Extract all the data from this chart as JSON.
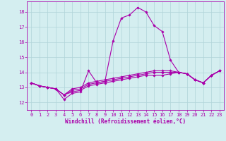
{
  "xlabel": "Windchill (Refroidissement éolien,°C)",
  "background_color": "#d4eef0",
  "grid_color": "#b0d4d8",
  "line_color": "#aa00aa",
  "x_ticks": [
    0,
    1,
    2,
    3,
    4,
    5,
    6,
    7,
    8,
    9,
    10,
    11,
    12,
    13,
    14,
    15,
    16,
    17,
    18,
    19,
    20,
    21,
    22,
    23
  ],
  "y_ticks": [
    12,
    13,
    14,
    15,
    16,
    17,
    18
  ],
  "ylim": [
    11.5,
    18.7
  ],
  "xlim": [
    -0.5,
    23.5
  ],
  "series": [
    [
      13.3,
      13.1,
      13.0,
      12.9,
      12.2,
      12.6,
      12.7,
      14.1,
      13.3,
      13.4,
      16.1,
      17.6,
      17.8,
      18.3,
      18.0,
      17.1,
      16.7,
      14.8,
      14.0,
      13.9,
      13.5,
      13.3,
      13.8,
      14.1
    ],
    [
      13.3,
      13.1,
      13.0,
      12.9,
      12.5,
      12.7,
      12.8,
      13.1,
      13.2,
      13.3,
      13.4,
      13.5,
      13.6,
      13.7,
      13.8,
      13.8,
      13.8,
      13.9,
      14.0,
      13.9,
      13.5,
      13.3,
      13.8,
      14.1
    ],
    [
      13.3,
      13.1,
      13.0,
      12.9,
      12.5,
      12.8,
      12.9,
      13.2,
      13.3,
      13.4,
      13.5,
      13.6,
      13.7,
      13.8,
      13.9,
      14.0,
      14.0,
      14.0,
      14.0,
      13.9,
      13.5,
      13.3,
      13.8,
      14.1
    ],
    [
      13.3,
      13.1,
      13.0,
      12.9,
      12.5,
      12.9,
      13.0,
      13.3,
      13.4,
      13.5,
      13.6,
      13.7,
      13.8,
      13.9,
      14.0,
      14.1,
      14.1,
      14.1,
      14.0,
      13.9,
      13.5,
      13.3,
      13.8,
      14.1
    ]
  ],
  "tick_fontsize": 5,
  "xlabel_fontsize": 5.5,
  "marker_size": 1.8,
  "line_width": 0.8
}
